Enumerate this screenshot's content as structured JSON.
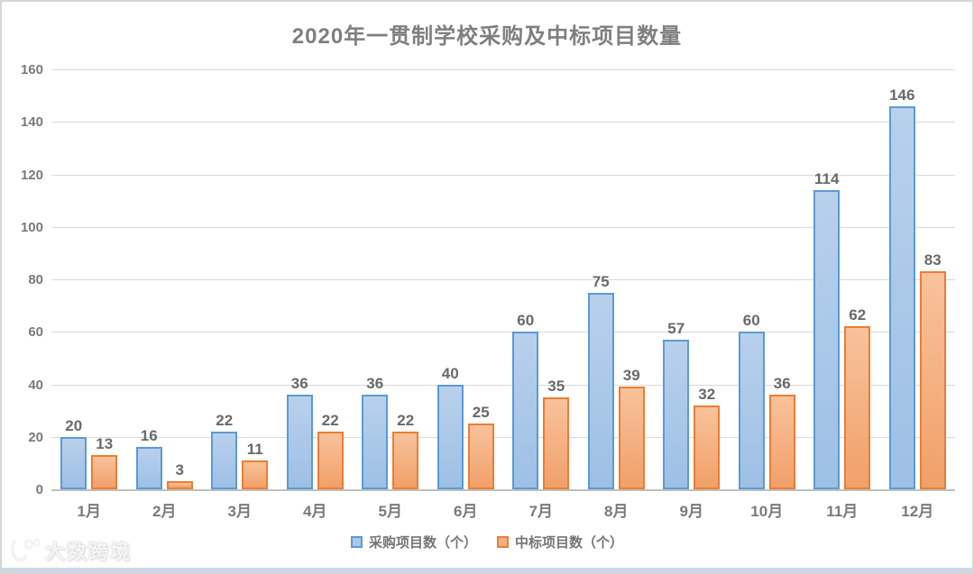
{
  "chart_data": {
    "type": "bar",
    "title": "2020年一贯制学校采购及中标项目数量",
    "categories": [
      "1月",
      "2月",
      "3月",
      "4月",
      "5月",
      "6月",
      "7月",
      "8月",
      "9月",
      "10月",
      "11月",
      "12月"
    ],
    "series": [
      {
        "name": "采购项目数（个）",
        "values": [
          20,
          16,
          22,
          36,
          36,
          40,
          60,
          75,
          57,
          60,
          114,
          146
        ],
        "fill_color": "#9DC3E6",
        "border_color": "#5B9BD5"
      },
      {
        "name": "中标项目数（个）",
        "values": [
          13,
          3,
          11,
          22,
          22,
          25,
          35,
          39,
          32,
          36,
          62,
          83
        ],
        "fill_color": "#F4B183",
        "border_color": "#ED7D31"
      }
    ],
    "xlabel": "",
    "ylabel": "",
    "ylim": [
      0,
      160
    ],
    "yticks": [
      0,
      20,
      40,
      60,
      80,
      100,
      120,
      140,
      160
    ],
    "grid": true,
    "legend_position": "bottom",
    "data_labels": true
  },
  "colors": {
    "title_text": "#7F7F7F",
    "axis_text": "#7A7A7A",
    "value_label_text": "#696969",
    "gridline": "#D9D9D9",
    "axis_line": "#C0C0C0",
    "bottom_strip": "#CCD6E4",
    "frame_border": "#D6D6D6"
  },
  "watermark": {
    "text": "大数跨境"
  }
}
